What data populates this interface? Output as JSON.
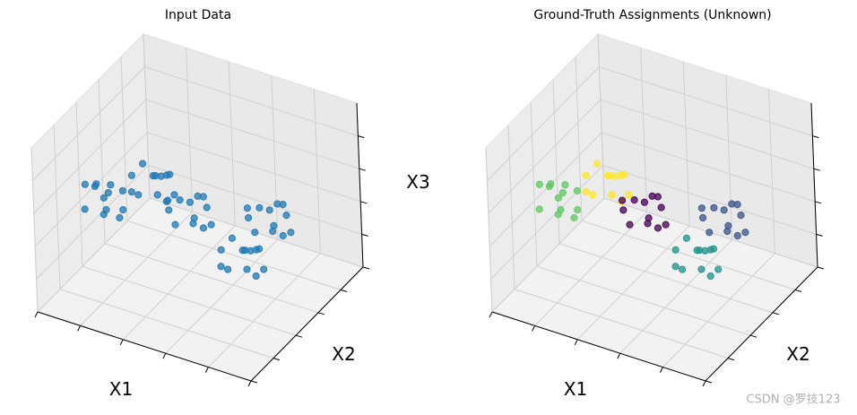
{
  "chart_data": [
    {
      "type": "scatter3d",
      "title": "Input Data",
      "xlabel": "X1",
      "ylabel": "X2",
      "zlabel": "X3",
      "xlim": [
        0,
        10
      ],
      "ylim": [
        0,
        10
      ],
      "zlim": [
        0,
        10
      ],
      "xticks": [
        0,
        2,
        4,
        6,
        8,
        10
      ],
      "yticks": [
        0,
        2,
        4,
        6,
        8,
        10
      ],
      "zticks": [
        2,
        4,
        6,
        8
      ],
      "series": [
        {
          "color": "#1f77b4",
          "x": [
            1.4,
            2.3,
            2.8,
            1.8,
            2.5,
            1.1,
            2.1,
            2.6,
            1.6,
            2.9,
            1.3,
            2.2
          ],
          "y": [
            2.8,
            1.9,
            2.6,
            3.2,
            1.7,
            2.5,
            2.2,
            3.0,
            1.5,
            2.1,
            3.1,
            2.7
          ],
          "z": [
            6.3,
            6.6,
            5.6,
            5.8,
            6.1,
            6.5,
            5.3,
            6.4,
            5.9,
            5.5,
            6.2,
            6.8
          ]
        },
        {
          "color": "#1f77b4",
          "x": [
            3.4,
            2.5,
            4.1,
            2.8,
            3.8,
            3.3,
            2.3,
            3.7,
            3.0,
            4.0,
            3.5,
            2.6
          ],
          "y": [
            4.9,
            4.0,
            4.7,
            5.3,
            3.8,
            4.6,
            4.3,
            5.1,
            3.6,
            4.2,
            5.2,
            4.8
          ],
          "z": [
            6.3,
            6.6,
            5.6,
            5.8,
            6.1,
            6.5,
            5.3,
            6.4,
            5.9,
            5.5,
            6.2,
            6.8
          ]
        },
        {
          "color": "#1f77b4",
          "x": [
            4.3,
            5.2,
            5.7,
            4.7,
            5.4,
            4.0,
            5.0,
            5.5,
            4.5,
            5.8,
            4.2,
            5.1
          ],
          "y": [
            4.8,
            5.2,
            4.2,
            3.6,
            5.1,
            4.3,
            4.6,
            3.8,
            5.3,
            4.7,
            4.0,
            4.9
          ],
          "z": [
            5.3,
            5.6,
            4.6,
            4.8,
            5.1,
            5.5,
            4.3,
            5.4,
            4.9,
            4.5,
            5.2,
            5.8
          ]
        },
        {
          "color": "#1f77b4",
          "x": [
            8.2,
            7.3,
            8.9,
            7.6,
            8.6,
            8.1,
            7.1,
            8.5,
            7.8,
            8.8,
            8.3,
            7.4
          ],
          "y": [
            6.1,
            5.2,
            5.9,
            6.5,
            5.0,
            5.8,
            5.5,
            6.3,
            4.8,
            5.4,
            6.4,
            6.0
          ],
          "z": [
            5.8,
            5.2,
            4.5,
            4.9,
            5.4,
            4.3,
            5.5,
            5.1,
            4.8,
            4.6,
            5.6,
            5.3
          ]
        },
        {
          "color": "#1f77b4",
          "x": [
            6.6,
            7.5,
            8.0,
            7.0,
            7.7,
            6.3,
            7.3,
            7.8,
            6.8,
            8.1,
            6.5,
            7.4
          ],
          "y": [
            5.0,
            5.4,
            4.4,
            3.8,
            5.3,
            4.5,
            4.8,
            4.0,
            5.5,
            4.9,
            4.2,
            5.1
          ],
          "z": [
            3.8,
            3.2,
            2.5,
            2.9,
            3.4,
            2.3,
            3.5,
            3.1,
            2.8,
            2.6,
            3.6,
            3.3
          ]
        }
      ]
    },
    {
      "type": "scatter3d",
      "title": "Ground-Truth Assignments (Unknown)",
      "xlabel": "X1",
      "ylabel": "X2",
      "xlim": [
        0,
        10
      ],
      "ylim": [
        0,
        10
      ],
      "zlim": [
        0,
        10
      ],
      "xticks": [
        0,
        2,
        4,
        6,
        8,
        10
      ],
      "yticks": [
        0,
        2,
        4,
        6,
        8,
        10
      ],
      "zticks": [
        2,
        4,
        6,
        8
      ],
      "series": [
        {
          "color": "#5ec962",
          "x": [
            1.4,
            2.3,
            2.8,
            1.8,
            2.5,
            1.1,
            2.1,
            2.6,
            1.6,
            2.9,
            1.3,
            2.2
          ],
          "y": [
            2.8,
            1.9,
            2.6,
            3.2,
            1.7,
            2.5,
            2.2,
            3.0,
            1.5,
            2.1,
            3.1,
            2.7
          ],
          "z": [
            6.3,
            6.6,
            5.6,
            5.8,
            6.1,
            6.5,
            5.3,
            6.4,
            5.9,
            5.5,
            6.2,
            6.8
          ]
        },
        {
          "color": "#fde725",
          "x": [
            3.4,
            2.5,
            4.1,
            2.8,
            3.8,
            3.3,
            2.3,
            3.7,
            3.0,
            4.0,
            3.5,
            2.6
          ],
          "y": [
            4.9,
            4.0,
            4.7,
            5.3,
            3.8,
            4.6,
            4.3,
            5.1,
            3.6,
            4.2,
            5.2,
            4.8
          ],
          "z": [
            6.3,
            6.6,
            5.6,
            5.8,
            6.1,
            6.5,
            5.3,
            6.4,
            5.9,
            5.5,
            6.2,
            6.8
          ]
        },
        {
          "color": "#440154",
          "x": [
            4.3,
            5.2,
            5.7,
            4.7,
            5.4,
            4.0,
            5.0,
            5.5,
            4.5,
            5.8,
            4.2,
            5.1
          ],
          "y": [
            4.8,
            5.2,
            4.2,
            3.6,
            5.1,
            4.3,
            4.6,
            3.8,
            5.3,
            4.7,
            4.0,
            4.9
          ],
          "z": [
            5.3,
            5.6,
            4.6,
            4.8,
            5.1,
            5.5,
            4.3,
            5.4,
            4.9,
            4.5,
            5.2,
            5.8
          ]
        },
        {
          "color": "#3b528b",
          "x": [
            8.2,
            7.3,
            8.9,
            7.6,
            8.6,
            8.1,
            7.1,
            8.5,
            7.8,
            8.8,
            8.3,
            7.4
          ],
          "y": [
            6.1,
            5.2,
            5.9,
            6.5,
            5.0,
            5.8,
            5.5,
            6.3,
            4.8,
            5.4,
            6.4,
            6.0
          ],
          "z": [
            5.8,
            5.2,
            4.5,
            4.9,
            5.4,
            4.3,
            5.5,
            5.1,
            4.8,
            4.6,
            5.6,
            5.3
          ]
        },
        {
          "color": "#21918c",
          "x": [
            6.6,
            7.5,
            8.0,
            7.0,
            7.7,
            6.3,
            7.3,
            7.8,
            6.8,
            8.1,
            6.5,
            7.4
          ],
          "y": [
            5.0,
            5.4,
            4.4,
            3.8,
            5.3,
            4.5,
            4.8,
            4.0,
            5.5,
            4.9,
            4.2,
            5.1
          ],
          "z": [
            3.8,
            3.2,
            2.5,
            2.9,
            3.4,
            2.3,
            3.5,
            3.1,
            2.8,
            2.6,
            3.6,
            3.3
          ]
        }
      ]
    }
  ],
  "watermark": "CSDN @罗技123"
}
